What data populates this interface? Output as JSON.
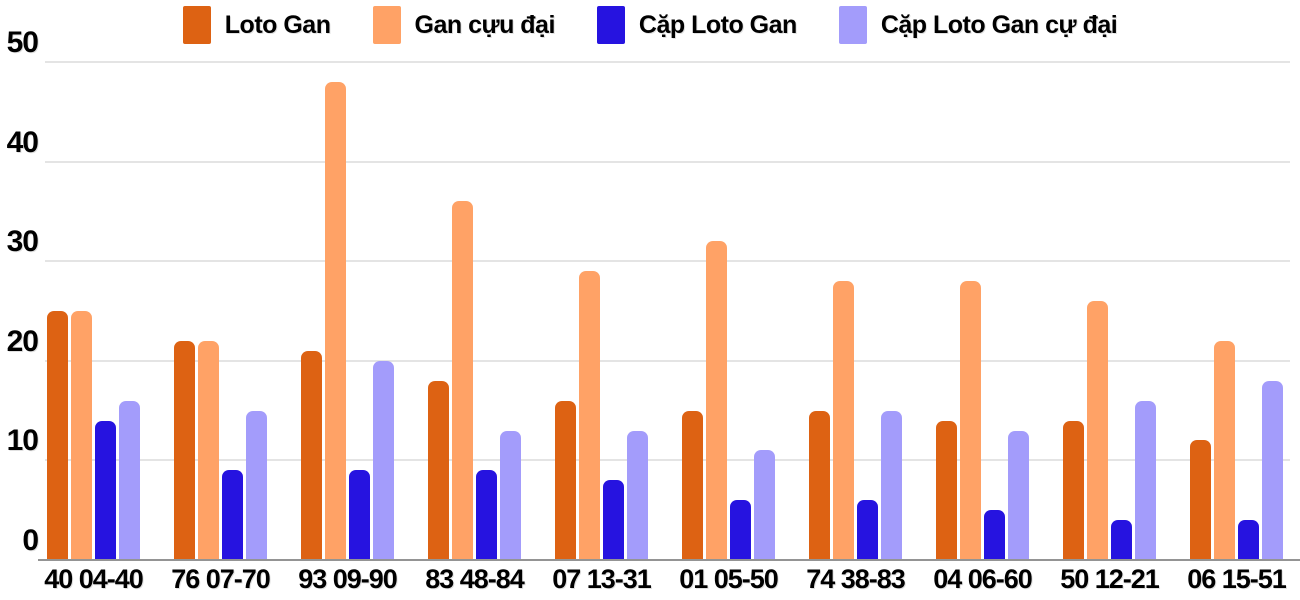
{
  "chart_data": {
    "type": "bar",
    "title": "",
    "xlabel": "",
    "ylabel": "",
    "ylim": [
      0,
      50
    ],
    "yticks": [
      0,
      10,
      20,
      30,
      40,
      50
    ],
    "grid": true,
    "legend_position": "top",
    "categories": [
      "40 04-40",
      "76 07-70",
      "93 09-90",
      "83 48-84",
      "07 13-31",
      "01 05-50",
      "74 38-83",
      "04 06-60",
      "50 12-21",
      "06 15-51"
    ],
    "series": [
      {
        "name": "Loto Gan",
        "color": "#dd6213",
        "values": [
          25,
          22,
          21,
          18,
          16,
          15,
          15,
          14,
          14,
          12
        ]
      },
      {
        "name": "Gan cựu đại",
        "color": "#ffa266",
        "values": [
          25,
          22,
          48,
          36,
          29,
          32,
          28,
          28,
          26,
          22
        ]
      },
      {
        "name": "Cặp Loto Gan",
        "color": "#2613e0",
        "values": [
          14,
          9,
          9,
          9,
          8,
          6,
          6,
          5,
          4,
          4
        ]
      },
      {
        "name": "Cặp Loto Gan cự đại",
        "color": "#a39cfb",
        "values": [
          16,
          15,
          20,
          13,
          13,
          11,
          15,
          13,
          16,
          18
        ]
      }
    ],
    "colors": {
      "gridline": "#e4e4e4",
      "axis_line": "#949494",
      "text": "#000000"
    }
  }
}
